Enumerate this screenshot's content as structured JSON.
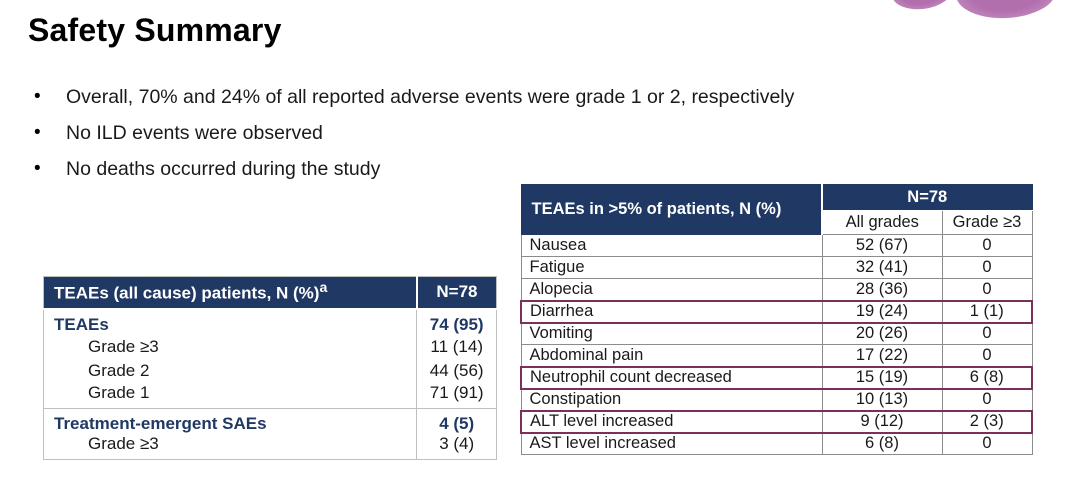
{
  "slide": {
    "title": "Safety Summary",
    "bullets": [
      "Overall, 70% and 24% of all reported adverse events were grade 1 or 2, respectively",
      "No ILD events were observed",
      "No deaths occurred during the study"
    ]
  },
  "left_table": {
    "header_label": "TEAEs (all cause) patients, N (%)",
    "header_sup": "a",
    "header_n": "N=78",
    "sections": [
      {
        "rows": [
          {
            "label": "TEAEs",
            "value": "74 (95)",
            "bold": true
          },
          {
            "label": "Grade ≥3",
            "value": "11 (14)",
            "bold": false
          },
          {
            "label": "Grade 2",
            "value": "44 (56)",
            "bold": false
          },
          {
            "label": "Grade 1",
            "value": "71 (91)",
            "bold": false
          }
        ]
      },
      {
        "rows": [
          {
            "label": "Treatment-emergent SAEs",
            "value": "4 (5)",
            "bold": true
          },
          {
            "label": "Grade ≥3",
            "value": "3 (4)",
            "bold": false
          }
        ]
      }
    ]
  },
  "right_table": {
    "corner_header": "TEAEs in >5% of patients, N (%)",
    "group_header": "N=78",
    "col_headers": [
      "All grades",
      "Grade ≥3"
    ],
    "rows": [
      {
        "label": "Nausea",
        "all_grades": "52 (67)",
        "grade3": "0",
        "highlighted": false
      },
      {
        "label": "Fatigue",
        "all_grades": "32 (41)",
        "grade3": "0",
        "highlighted": false
      },
      {
        "label": "Alopecia",
        "all_grades": "28 (36)",
        "grade3": "0",
        "highlighted": false
      },
      {
        "label": "Diarrhea",
        "all_grades": "19 (24)",
        "grade3": "1 (1)",
        "highlighted": true
      },
      {
        "label": "Vomiting",
        "all_grades": "20 (26)",
        "grade3": "0",
        "highlighted": false
      },
      {
        "label": "Abdominal pain",
        "all_grades": "17 (22)",
        "grade3": "0",
        "highlighted": false
      },
      {
        "label": "Neutrophil count decreased",
        "all_grades": "15 (19)",
        "grade3": "6 (8)",
        "highlighted": true
      },
      {
        "label": "Constipation",
        "all_grades": "10 (13)",
        "grade3": "0",
        "highlighted": false
      },
      {
        "label": "ALT level increased",
        "all_grades": "9 (12)",
        "grade3": "2 (3)",
        "highlighted": true
      },
      {
        "label": "AST level increased",
        "all_grades": "6 (8)",
        "grade3": "0",
        "highlighted": false
      }
    ]
  },
  "colors": {
    "header_navy": "#1f3864",
    "highlight_plum": "#7b2f5b",
    "logo_pink": "#b26fae"
  }
}
